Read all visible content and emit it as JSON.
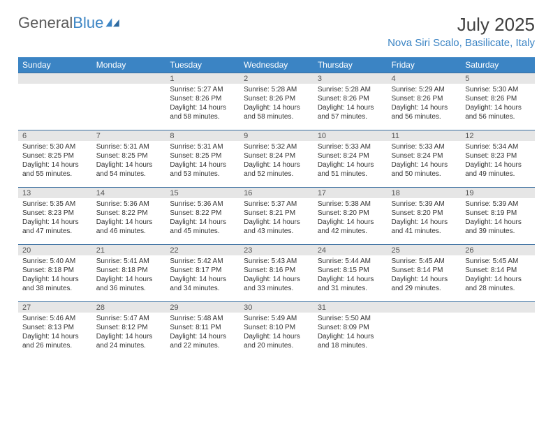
{
  "logo": {
    "text_gray": "General",
    "text_blue": "Blue"
  },
  "title": "July 2025",
  "location": "Nova Siri Scalo, Basilicate, Italy",
  "header_bg": "#3b84c4",
  "header_fg": "#ffffff",
  "daynum_bg": "#e6e6e6",
  "border_color": "#3b6fa0",
  "days_of_week": [
    "Sunday",
    "Monday",
    "Tuesday",
    "Wednesday",
    "Thursday",
    "Friday",
    "Saturday"
  ],
  "weeks": [
    [
      null,
      null,
      {
        "n": "1",
        "sr": "5:27 AM",
        "ss": "8:26 PM",
        "dl": "14 hours and 58 minutes."
      },
      {
        "n": "2",
        "sr": "5:28 AM",
        "ss": "8:26 PM",
        "dl": "14 hours and 58 minutes."
      },
      {
        "n": "3",
        "sr": "5:28 AM",
        "ss": "8:26 PM",
        "dl": "14 hours and 57 minutes."
      },
      {
        "n": "4",
        "sr": "5:29 AM",
        "ss": "8:26 PM",
        "dl": "14 hours and 56 minutes."
      },
      {
        "n": "5",
        "sr": "5:30 AM",
        "ss": "8:26 PM",
        "dl": "14 hours and 56 minutes."
      }
    ],
    [
      {
        "n": "6",
        "sr": "5:30 AM",
        "ss": "8:25 PM",
        "dl": "14 hours and 55 minutes."
      },
      {
        "n": "7",
        "sr": "5:31 AM",
        "ss": "8:25 PM",
        "dl": "14 hours and 54 minutes."
      },
      {
        "n": "8",
        "sr": "5:31 AM",
        "ss": "8:25 PM",
        "dl": "14 hours and 53 minutes."
      },
      {
        "n": "9",
        "sr": "5:32 AM",
        "ss": "8:24 PM",
        "dl": "14 hours and 52 minutes."
      },
      {
        "n": "10",
        "sr": "5:33 AM",
        "ss": "8:24 PM",
        "dl": "14 hours and 51 minutes."
      },
      {
        "n": "11",
        "sr": "5:33 AM",
        "ss": "8:24 PM",
        "dl": "14 hours and 50 minutes."
      },
      {
        "n": "12",
        "sr": "5:34 AM",
        "ss": "8:23 PM",
        "dl": "14 hours and 49 minutes."
      }
    ],
    [
      {
        "n": "13",
        "sr": "5:35 AM",
        "ss": "8:23 PM",
        "dl": "14 hours and 47 minutes."
      },
      {
        "n": "14",
        "sr": "5:36 AM",
        "ss": "8:22 PM",
        "dl": "14 hours and 46 minutes."
      },
      {
        "n": "15",
        "sr": "5:36 AM",
        "ss": "8:22 PM",
        "dl": "14 hours and 45 minutes."
      },
      {
        "n": "16",
        "sr": "5:37 AM",
        "ss": "8:21 PM",
        "dl": "14 hours and 43 minutes."
      },
      {
        "n": "17",
        "sr": "5:38 AM",
        "ss": "8:20 PM",
        "dl": "14 hours and 42 minutes."
      },
      {
        "n": "18",
        "sr": "5:39 AM",
        "ss": "8:20 PM",
        "dl": "14 hours and 41 minutes."
      },
      {
        "n": "19",
        "sr": "5:39 AM",
        "ss": "8:19 PM",
        "dl": "14 hours and 39 minutes."
      }
    ],
    [
      {
        "n": "20",
        "sr": "5:40 AM",
        "ss": "8:18 PM",
        "dl": "14 hours and 38 minutes."
      },
      {
        "n": "21",
        "sr": "5:41 AM",
        "ss": "8:18 PM",
        "dl": "14 hours and 36 minutes."
      },
      {
        "n": "22",
        "sr": "5:42 AM",
        "ss": "8:17 PM",
        "dl": "14 hours and 34 minutes."
      },
      {
        "n": "23",
        "sr": "5:43 AM",
        "ss": "8:16 PM",
        "dl": "14 hours and 33 minutes."
      },
      {
        "n": "24",
        "sr": "5:44 AM",
        "ss": "8:15 PM",
        "dl": "14 hours and 31 minutes."
      },
      {
        "n": "25",
        "sr": "5:45 AM",
        "ss": "8:14 PM",
        "dl": "14 hours and 29 minutes."
      },
      {
        "n": "26",
        "sr": "5:45 AM",
        "ss": "8:14 PM",
        "dl": "14 hours and 28 minutes."
      }
    ],
    [
      {
        "n": "27",
        "sr": "5:46 AM",
        "ss": "8:13 PM",
        "dl": "14 hours and 26 minutes."
      },
      {
        "n": "28",
        "sr": "5:47 AM",
        "ss": "8:12 PM",
        "dl": "14 hours and 24 minutes."
      },
      {
        "n": "29",
        "sr": "5:48 AM",
        "ss": "8:11 PM",
        "dl": "14 hours and 22 minutes."
      },
      {
        "n": "30",
        "sr": "5:49 AM",
        "ss": "8:10 PM",
        "dl": "14 hours and 20 minutes."
      },
      {
        "n": "31",
        "sr": "5:50 AM",
        "ss": "8:09 PM",
        "dl": "14 hours and 18 minutes."
      },
      null,
      null
    ]
  ],
  "labels": {
    "sunrise": "Sunrise: ",
    "sunset": "Sunset: ",
    "daylight": "Daylight: "
  }
}
